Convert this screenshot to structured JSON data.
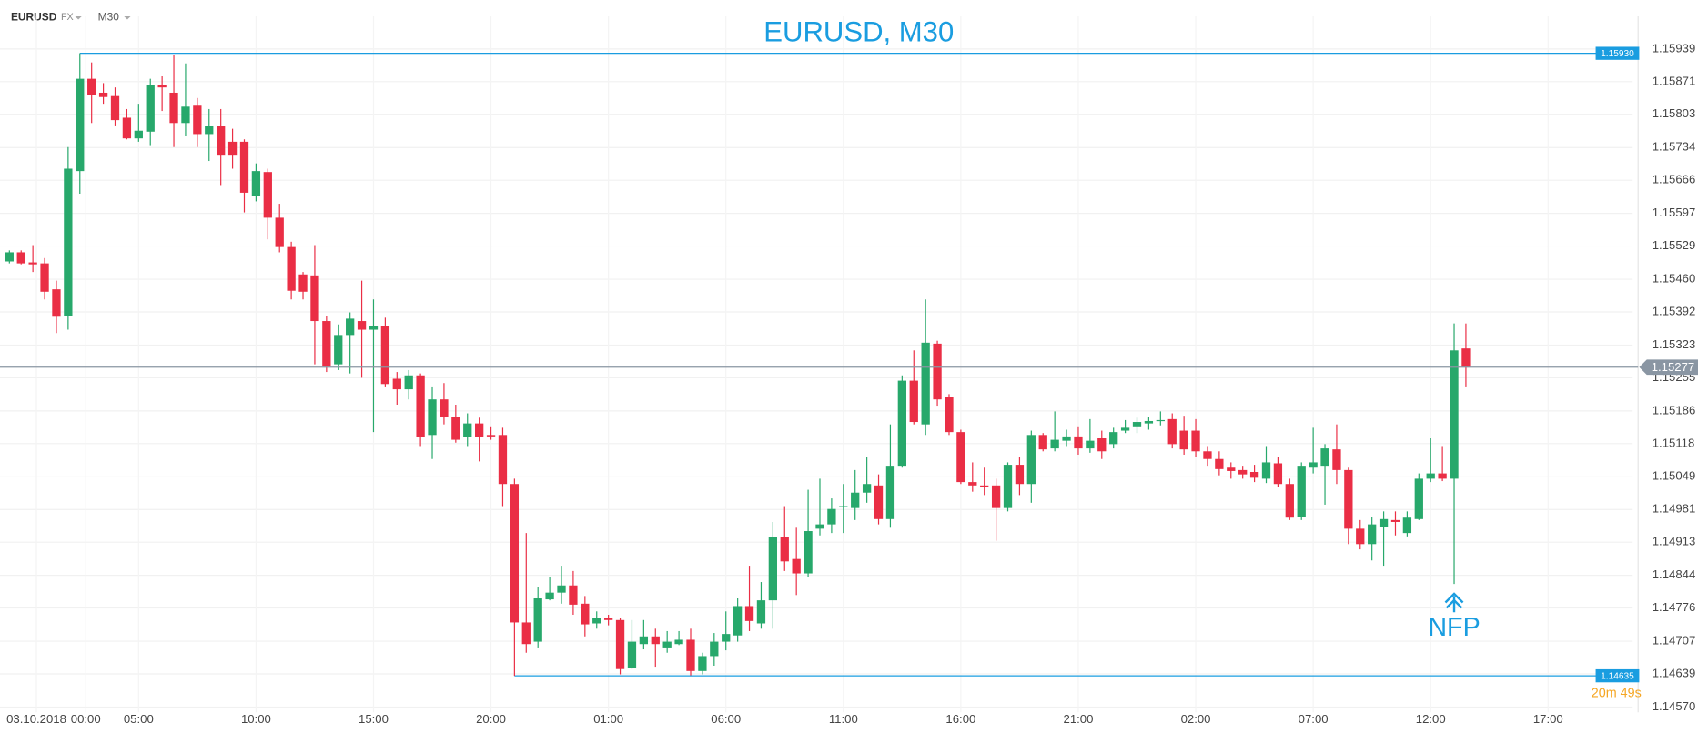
{
  "header": {
    "symbol": "EURUSD",
    "market": "FX",
    "timeframe": "M30"
  },
  "chart_data": {
    "type": "candlestick",
    "title": "EURUSD, M30",
    "up_color": "#27a86b",
    "down_color": "#ea2e45",
    "x": [
      0,
      1,
      2,
      3,
      4,
      5,
      6,
      7,
      8,
      9,
      10,
      11,
      12,
      13,
      14,
      15,
      16,
      17,
      18,
      19,
      20,
      21,
      22,
      23,
      24,
      25,
      26,
      27,
      28,
      29,
      30,
      31,
      32,
      33,
      34,
      35,
      36,
      37,
      38,
      39,
      40,
      41,
      42,
      43,
      44,
      45,
      46,
      47,
      48,
      49,
      50,
      51,
      52,
      53,
      54,
      55,
      56,
      57,
      58,
      59,
      60,
      61,
      62,
      63,
      64,
      65,
      66,
      67,
      68,
      69,
      70,
      71,
      72,
      73,
      74,
      75,
      76,
      77,
      78,
      79,
      80,
      81,
      82,
      83,
      84,
      85,
      86,
      87,
      88,
      89,
      90,
      91,
      92,
      93,
      94,
      95,
      96,
      97,
      98,
      99,
      100,
      101,
      102,
      103,
      104,
      105,
      106,
      107,
      108,
      109,
      110,
      111,
      112,
      113,
      114,
      115,
      116,
      117,
      118,
      119,
      120,
      121,
      122,
      123,
      124
    ],
    "open": [
      1.15497,
      1.15516,
      1.15495,
      1.15493,
      1.15439,
      1.15384,
      1.15685,
      1.15877,
      1.15848,
      1.15841,
      1.15796,
      1.15753,
      1.15767,
      1.15864,
      1.15848,
      1.15785,
      1.15821,
      1.15762,
      1.15778,
      1.15746,
      1.15746,
      1.15633,
      1.15683,
      1.15588,
      1.15527,
      1.1547,
      1.15468,
      1.15373,
      1.15283,
      1.15344,
      1.15373,
      1.15355,
      1.15362,
      1.15253,
      1.15231,
      1.1526,
      1.15136,
      1.1521,
      1.15174,
      1.15131,
      1.1516,
      1.15136,
      1.15136,
      1.15034,
      1.14746,
      1.14706,
      1.14794,
      1.14808,
      1.14823,
      1.14785,
      1.14744,
      1.14755,
      1.14751,
      1.14651,
      1.14701,
      1.14717,
      1.14694,
      1.14701,
      1.1471,
      1.14645,
      1.14676,
      1.14706,
      1.14719,
      1.1478,
      1.14744,
      1.14792,
      1.14923,
      1.14878,
      1.14848,
      1.14941,
      1.1495,
      1.14986,
      1.14984,
      1.15016,
      1.15031,
      1.14961,
      1.15072,
      1.15249,
      1.15158,
      1.15326,
      1.15215,
      1.15142,
      1.15038,
      1.15031,
      1.15031,
      1.14984,
      1.15074,
      1.15034,
      1.15136,
      1.15108,
      1.15124,
      1.15133,
      1.15108,
      1.15129,
      1.15117,
      1.15145,
      1.15154,
      1.1516,
      1.15165,
      1.15169,
      1.15145,
      1.15145,
      1.15102,
      1.15086,
      1.15068,
      1.15063,
      1.15059,
      1.15045,
      1.15077,
      1.15034,
      1.14966,
      1.15068,
      1.15072,
      1.15106,
      1.15063,
      1.14941,
      1.14909,
      1.14945,
      1.14959,
      1.14932,
      1.14961,
      1.15045,
      1.15056,
      1.15045,
      1.15316
    ],
    "high": [
      1.1552,
      1.1552,
      1.15531,
      1.15504,
      1.15457,
      1.15735,
      1.1593,
      1.15911,
      1.15868,
      1.15859,
      1.15814,
      1.15825,
      1.15877,
      1.15882,
      1.15927,
      1.15909,
      1.15837,
      1.15814,
      1.15814,
      1.15773,
      1.15751,
      1.15701,
      1.1569,
      1.15617,
      1.15538,
      1.15475,
      1.15531,
      1.15384,
      1.15366,
      1.15391,
      1.15457,
      1.15418,
      1.1538,
      1.15267,
      1.15271,
      1.15264,
      1.15237,
      1.15244,
      1.15199,
      1.15181,
      1.15172,
      1.15154,
      1.15151,
      1.15045,
      1.14932,
      1.14819,
      1.14841,
      1.14864,
      1.14853,
      1.14801,
      1.14769,
      1.14762,
      1.14755,
      1.14751,
      1.14751,
      1.14733,
      1.14728,
      1.14728,
      1.14733,
      1.14683,
      1.14724,
      1.14769,
      1.14796,
      1.14864,
      1.1483,
      1.14955,
      1.14988,
      1.14943,
      1.15022,
      1.15045,
      1.15004,
      1.15034,
      1.15063,
      1.1509,
      1.15054,
      1.15158,
      1.1526,
      1.15312,
      1.15418,
      1.15332,
      1.15221,
      1.15147,
      1.15079,
      1.15068,
      1.15045,
      1.15079,
      1.1509,
      1.15145,
      1.1514,
      1.15185,
      1.15147,
      1.15154,
      1.15169,
      1.15145,
      1.15151,
      1.15167,
      1.15172,
      1.15174,
      1.15185,
      1.15181,
      1.15176,
      1.15169,
      1.15113,
      1.15102,
      1.15079,
      1.15072,
      1.15074,
      1.15113,
      1.1509,
      1.15045,
      1.15079,
      1.15151,
      1.15117,
      1.15158,
      1.15068,
      1.14959,
      1.14966,
      1.14977,
      1.14977,
      1.14977,
      1.15056,
      1.15129,
      1.15113,
      1.15368,
      1.15368
    ],
    "low": [
      1.15493,
      1.15491,
      1.15475,
      1.15418,
      1.15348,
      1.15355,
      1.15638,
      1.15785,
      1.15825,
      1.1578,
      1.15751,
      1.15746,
      1.15739,
      1.1581,
      1.15735,
      1.15758,
      1.15735,
      1.15706,
      1.15656,
      1.1569,
      1.15599,
      1.15622,
      1.15543,
      1.15516,
      1.15418,
      1.15418,
      1.15283,
      1.15267,
      1.15271,
      1.15264,
      1.15255,
      1.15142,
      1.15237,
      1.15199,
      1.1521,
      1.15113,
      1.15086,
      1.15158,
      1.1512,
      1.15113,
      1.15081,
      1.15126,
      1.14988,
      1.14635,
      1.14683,
      1.14694,
      1.14792,
      1.14785,
      1.14762,
      1.14717,
      1.14733,
      1.1474,
      1.14638,
      1.14649,
      1.1469,
      1.14654,
      1.14683,
      1.14699,
      1.14636,
      1.14638,
      1.14656,
      1.14688,
      1.14706,
      1.14728,
      1.14733,
      1.14733,
      1.14853,
      1.14803,
      1.14841,
      1.14927,
      1.14932,
      1.14932,
      1.14959,
      1.14995,
      1.1495,
      1.14943,
      1.15068,
      1.15158,
      1.15136,
      1.15197,
      1.15136,
      1.15034,
      1.15018,
      1.15011,
      1.14916,
      1.14977,
      1.15011,
      1.14995,
      1.15102,
      1.15102,
      1.15113,
      1.15095,
      1.15099,
      1.15086,
      1.15108,
      1.1514,
      1.1514,
      1.15147,
      1.15156,
      1.15108,
      1.15095,
      1.1509,
      1.15072,
      1.15052,
      1.15045,
      1.15045,
      1.15038,
      1.15036,
      1.15027,
      1.14959,
      1.14959,
      1.15056,
      1.14991,
      1.15034,
      1.14909,
      1.14898,
      1.14875,
      1.14864,
      1.14927,
      1.14925,
      1.14959,
      1.15038,
      1.1504,
      1.14826,
      1.15237
    ],
    "close": [
      1.15516,
      1.15493,
      1.15491,
      1.15434,
      1.15382,
      1.1569,
      1.15877,
      1.15844,
      1.15839,
      1.15791,
      1.15753,
      1.15769,
      1.15864,
      1.15859,
      1.15785,
      1.15819,
      1.15762,
      1.15778,
      1.15719,
      1.15719,
      1.1564,
      1.15685,
      1.15588,
      1.15527,
      1.15436,
      1.15434,
      1.15373,
      1.15278,
      1.15344,
      1.15378,
      1.15355,
      1.15362,
      1.15242,
      1.15231,
      1.1526,
      1.15131,
      1.1521,
      1.15174,
      1.15126,
      1.1516,
      1.15131,
      1.15133,
      1.15034,
      1.14746,
      1.14701,
      1.14796,
      1.14808,
      1.14823,
      1.14783,
      1.14742,
      1.14755,
      1.14751,
      1.14649,
      1.14706,
      1.14717,
      1.14701,
      1.14706,
      1.1471,
      1.14645,
      1.14676,
      1.14706,
      1.14722,
      1.1478,
      1.14749,
      1.14792,
      1.14923,
      1.14873,
      1.14848,
      1.14936,
      1.1495,
      1.14982,
      1.14988,
      1.15016,
      1.15034,
      1.14961,
      1.15072,
      1.15249,
      1.15163,
      1.15328,
      1.1521,
      1.15142,
      1.15038,
      1.15031,
      1.15029,
      1.14984,
      1.15074,
      1.15034,
      1.15136,
      1.15106,
      1.15126,
      1.15133,
      1.15108,
      1.15124,
      1.15102,
      1.15142,
      1.15151,
      1.15163,
      1.15165,
      1.15167,
      1.15117,
      1.15106,
      1.15102,
      1.15086,
      1.15065,
      1.15061,
      1.15054,
      1.15047,
      1.15079,
      1.15034,
      1.14964,
      1.15072,
      1.15079,
      1.15108,
      1.15063,
      1.14941,
      1.14909,
      1.1495,
      1.14961,
      1.14955,
      1.14964,
      1.15045,
      1.15056,
      1.15045,
      1.15312,
      1.15277
    ],
    "xlim": [
      -0.8,
      138.2
    ],
    "xticks": [
      {
        "value": 2.3,
        "label": "03.10.2018"
      },
      {
        "value": 6.5,
        "label": "00:00"
      },
      {
        "value": 11,
        "label": "05:00"
      },
      {
        "value": 21,
        "label": "10:00"
      },
      {
        "value": 31,
        "label": "15:00"
      },
      {
        "value": 41,
        "label": "20:00"
      },
      {
        "value": 51,
        "label": "01:00"
      },
      {
        "value": 61,
        "label": "06:00"
      },
      {
        "value": 71,
        "label": "11:00"
      },
      {
        "value": 81,
        "label": "16:00"
      },
      {
        "value": 91,
        "label": "21:00"
      },
      {
        "value": 101,
        "label": "02:00"
      },
      {
        "value": 111,
        "label": "07:00"
      },
      {
        "value": 121,
        "label": "12:00"
      },
      {
        "value": 131,
        "label": "17:00"
      }
    ],
    "ylim": [
      1.14559,
      1.16007
    ],
    "yticks": [
      1.15939,
      1.15871,
      1.15803,
      1.15734,
      1.15666,
      1.15597,
      1.15529,
      {
        "value": 1.1546,
        "label": "1.15460"
      },
      1.15392,
      1.15323,
      1.15255,
      1.15186,
      1.15118,
      1.15049,
      1.14981,
      1.14913,
      1.14844,
      1.14776,
      1.14707,
      1.14639,
      {
        "value": 1.1457,
        "label": "1.14570"
      }
    ],
    "grid": true,
    "high_line": {
      "value": 1.1593,
      "label": "1.15930"
    },
    "low_line": 1.14635,
    "last_price": 1.15277,
    "countdown": "20m 49s",
    "annotations": [
      {
        "text": "NFP",
        "x": 123
      }
    ]
  }
}
